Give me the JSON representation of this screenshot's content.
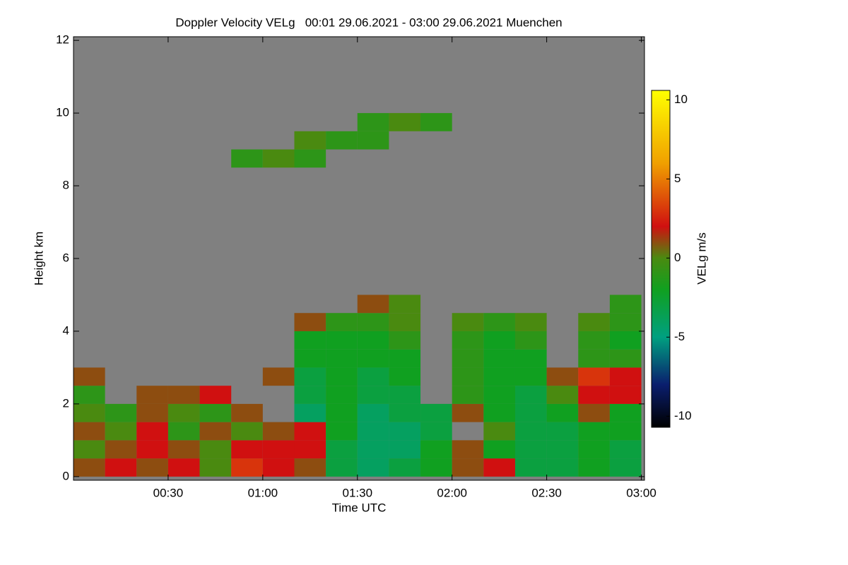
{
  "chart_data": {
    "type": "heatmap",
    "title": "Doppler Velocity VELg   00:01 29.06.2021 - 03:00 29.06.2021 Muenchen",
    "xlabel": "Time UTC",
    "ylabel": "Height km",
    "colorbar_label": "VELg m/s",
    "xlim": [
      0,
      181
    ],
    "ylim": [
      -0.1,
      12.1
    ],
    "zlim": [
      -10.7,
      10.6
    ],
    "xticks": [
      {
        "value": 30,
        "label": "00:30"
      },
      {
        "value": 60,
        "label": "01:00"
      },
      {
        "value": 90,
        "label": "01:30"
      },
      {
        "value": 120,
        "label": "02:00"
      },
      {
        "value": 150,
        "label": "02:30"
      },
      {
        "value": 180,
        "label": "03:00"
      }
    ],
    "yticks": [
      0,
      2,
      4,
      6,
      8,
      10,
      12
    ],
    "zticks": [
      -10,
      -5,
      0,
      5,
      10
    ],
    "background": "#808080",
    "colormap": [
      {
        "value": -10.7,
        "color": "#000000"
      },
      {
        "value": -8,
        "color": "#0a1e6e"
      },
      {
        "value": -5,
        "color": "#00a080"
      },
      {
        "value": -2,
        "color": "#10a020"
      },
      {
        "value": 0,
        "color": "#4a8a10"
      },
      {
        "value": 2,
        "color": "#d01010"
      },
      {
        "value": 6,
        "color": "#f0a000"
      },
      {
        "value": 10.6,
        "color": "#ffff00"
      }
    ],
    "x": [
      5,
      15,
      25,
      35,
      45,
      55,
      65,
      75,
      85,
      95,
      105,
      115,
      125,
      135,
      145,
      155,
      165,
      175
    ],
    "y": [
      0.25,
      0.75,
      1.25,
      1.75,
      2.25,
      2.75,
      3.25,
      3.75,
      4.25,
      4.75,
      5.25,
      5.75,
      6.25,
      6.75,
      7.25,
      7.75,
      8.25,
      8.75,
      9.25,
      9.75,
      10.25,
      10.75,
      11.25,
      11.75
    ],
    "cell_width": 10,
    "cell_height": 0.5,
    "z": [
      [
        1,
        2,
        1,
        2,
        0,
        3,
        2,
        1,
        -3,
        -4,
        -3,
        -2,
        1,
        2,
        -3,
        -3,
        -2,
        -3
      ],
      [
        0,
        1,
        2,
        1,
        0,
        2,
        2,
        2,
        -3,
        -4,
        -4,
        -2,
        1,
        -2,
        -3,
        -3,
        -2,
        -3
      ],
      [
        1,
        0,
        2,
        -1,
        1,
        0,
        1,
        2,
        -2,
        -4,
        -4,
        -3,
        null,
        0,
        -3,
        -3,
        -2,
        -2
      ],
      [
        0,
        -1,
        1,
        0,
        -1,
        1,
        null,
        -4,
        -2,
        -4,
        -3,
        -3,
        1,
        -2,
        -3,
        -2,
        1,
        -2
      ],
      [
        -1,
        null,
        1,
        1,
        2,
        null,
        null,
        -3,
        -2,
        -3,
        -3,
        null,
        -1,
        -2,
        -3,
        0,
        2,
        2
      ],
      [
        1,
        null,
        null,
        null,
        null,
        null,
        1,
        -3,
        -2,
        -3,
        -2,
        null,
        -1,
        -2,
        -2,
        1,
        3,
        2
      ],
      [
        null,
        null,
        null,
        null,
        null,
        null,
        null,
        -2,
        -2,
        -2,
        -2,
        null,
        -1,
        -2,
        -2,
        null,
        -1,
        -1
      ],
      [
        null,
        null,
        null,
        null,
        null,
        null,
        null,
        -2,
        -2,
        -2,
        -1,
        null,
        -1,
        -2,
        -1,
        null,
        -1,
        -2
      ],
      [
        null,
        null,
        null,
        null,
        null,
        null,
        null,
        1,
        -1,
        -1,
        0,
        null,
        0,
        -1,
        0,
        null,
        0,
        -1
      ],
      [
        null,
        null,
        null,
        null,
        null,
        null,
        null,
        null,
        null,
        1,
        0,
        null,
        null,
        null,
        null,
        null,
        null,
        -1
      ],
      [
        null,
        null,
        null,
        null,
        null,
        null,
        null,
        null,
        null,
        null,
        null,
        null,
        null,
        null,
        null,
        null,
        null,
        null
      ],
      [
        null,
        null,
        null,
        null,
        null,
        null,
        null,
        null,
        null,
        null,
        null,
        null,
        null,
        null,
        null,
        null,
        null,
        null
      ],
      [
        null,
        null,
        null,
        null,
        null,
        null,
        null,
        null,
        null,
        null,
        null,
        null,
        null,
        null,
        null,
        null,
        null,
        null
      ],
      [
        null,
        null,
        null,
        null,
        null,
        null,
        null,
        null,
        null,
        null,
        null,
        null,
        null,
        null,
        null,
        null,
        null,
        null
      ],
      [
        null,
        null,
        null,
        null,
        null,
        null,
        null,
        null,
        null,
        null,
        null,
        null,
        null,
        null,
        null,
        null,
        null,
        null
      ],
      [
        null,
        null,
        null,
        null,
        null,
        null,
        null,
        null,
        null,
        null,
        null,
        null,
        null,
        null,
        null,
        null,
        null,
        null
      ],
      [
        null,
        null,
        null,
        null,
        null,
        null,
        null,
        null,
        null,
        null,
        null,
        null,
        null,
        null,
        null,
        null,
        null,
        null
      ],
      [
        null,
        null,
        null,
        null,
        null,
        -1,
        0,
        -1,
        null,
        null,
        null,
        null,
        null,
        null,
        null,
        null,
        null,
        null
      ],
      [
        null,
        null,
        null,
        null,
        null,
        null,
        null,
        0,
        -1,
        -1,
        null,
        null,
        null,
        null,
        null,
        null,
        null,
        null
      ],
      [
        null,
        null,
        null,
        null,
        null,
        null,
        null,
        null,
        null,
        -1,
        0,
        -1,
        null,
        null,
        null,
        null,
        null,
        null
      ],
      [
        null,
        null,
        null,
        null,
        null,
        null,
        null,
        null,
        null,
        null,
        null,
        null,
        null,
        null,
        null,
        null,
        null,
        null
      ],
      [
        null,
        null,
        null,
        null,
        null,
        null,
        null,
        null,
        null,
        null,
        null,
        null,
        null,
        null,
        null,
        null,
        null,
        null
      ],
      [
        null,
        null,
        null,
        null,
        null,
        null,
        null,
        null,
        null,
        null,
        null,
        null,
        null,
        null,
        null,
        null,
        null,
        null
      ],
      [
        null,
        null,
        null,
        null,
        null,
        null,
        null,
        null,
        null,
        null,
        null,
        null,
        null,
        null,
        null,
        null,
        null,
        null
      ]
    ]
  }
}
